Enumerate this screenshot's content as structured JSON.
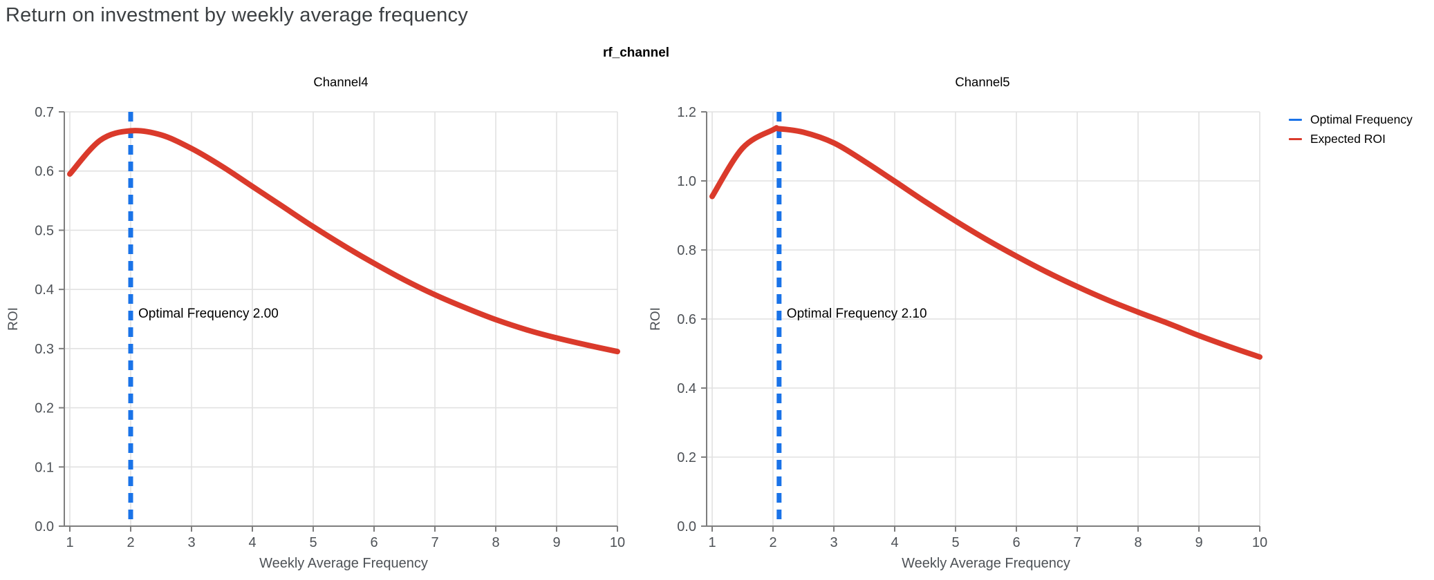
{
  "page_title": "Return on investment by weekly average frequency",
  "facet_header": "rf_channel",
  "legend": {
    "items": [
      {
        "label": "Optimal Frequency",
        "color": "#1a73e8"
      },
      {
        "label": "Expected ROI",
        "color": "#da3a2b"
      }
    ]
  },
  "colors": {
    "accent_blue": "#1a73e8",
    "accent_red": "#da3a2b",
    "grid": "#e1e1e1",
    "axis": "#7d7d7d",
    "tick_text": "#4d5156",
    "title_text": "#3c4043",
    "annotation_text": "#000000"
  },
  "chart_data": [
    {
      "type": "line",
      "title": "Channel4",
      "xlabel": "Weekly Average Frequency",
      "ylabel": "ROI",
      "xlim": [
        1,
        10
      ],
      "ylim": [
        0,
        0.7
      ],
      "xticks": [
        1,
        2,
        3,
        4,
        5,
        6,
        7,
        8,
        9,
        10
      ],
      "xtick_labels": [
        "1",
        "2",
        "3",
        "4",
        "5",
        "6",
        "7",
        "8",
        "9",
        "10"
      ],
      "yticks": [
        0,
        0.1,
        0.2,
        0.3,
        0.4,
        0.5,
        0.6,
        0.7
      ],
      "ytick_labels": [
        "0.0",
        "0.1",
        "0.2",
        "0.3",
        "0.4",
        "0.5",
        "0.6",
        "0.7"
      ],
      "grid": true,
      "vline": {
        "x": 2.0,
        "name": "Optimal Frequency",
        "style": "dashed"
      },
      "annotation": "Optimal Frequency  2.00",
      "series": [
        {
          "name": "Expected ROI",
          "x": [
            1,
            1.5,
            2,
            2.5,
            3,
            3.5,
            4,
            4.5,
            5,
            5.5,
            6,
            6.5,
            7,
            7.5,
            8,
            8.5,
            9,
            9.5,
            10
          ],
          "y": [
            0.595,
            0.652,
            0.668,
            0.661,
            0.638,
            0.608,
            0.574,
            0.54,
            0.506,
            0.474,
            0.444,
            0.416,
            0.391,
            0.369,
            0.349,
            0.332,
            0.318,
            0.306,
            0.295
          ]
        }
      ]
    },
    {
      "type": "line",
      "title": "Channel5",
      "xlabel": "Weekly Average Frequency",
      "ylabel": "ROI",
      "xlim": [
        1,
        10
      ],
      "ylim": [
        0,
        1.2
      ],
      "xticks": [
        1,
        2,
        3,
        4,
        5,
        6,
        7,
        8,
        9,
        10
      ],
      "xtick_labels": [
        "1",
        "2",
        "3",
        "4",
        "5",
        "6",
        "7",
        "8",
        "9",
        "10"
      ],
      "yticks": [
        0,
        0.2,
        0.4,
        0.6,
        0.8,
        1.0,
        1.2
      ],
      "ytick_labels": [
        "0.0",
        "0.2",
        "0.4",
        "0.6",
        "0.8",
        "1.0",
        "1.2"
      ],
      "grid": true,
      "vline": {
        "x": 2.1,
        "name": "Optimal Frequency",
        "style": "dashed"
      },
      "annotation": "Optimal Frequency  2.10",
      "series": [
        {
          "name": "Expected ROI",
          "x": [
            1,
            1.5,
            2,
            2.1,
            2.5,
            3,
            3.5,
            4,
            4.5,
            5,
            5.5,
            6,
            6.5,
            7,
            7.5,
            8,
            8.5,
            9,
            9.5,
            10
          ],
          "y": [
            0.955,
            1.095,
            1.148,
            1.151,
            1.141,
            1.11,
            1.057,
            0.999,
            0.94,
            0.884,
            0.831,
            0.782,
            0.736,
            0.694,
            0.655,
            0.62,
            0.587,
            0.552,
            0.52,
            0.49
          ]
        }
      ]
    }
  ]
}
